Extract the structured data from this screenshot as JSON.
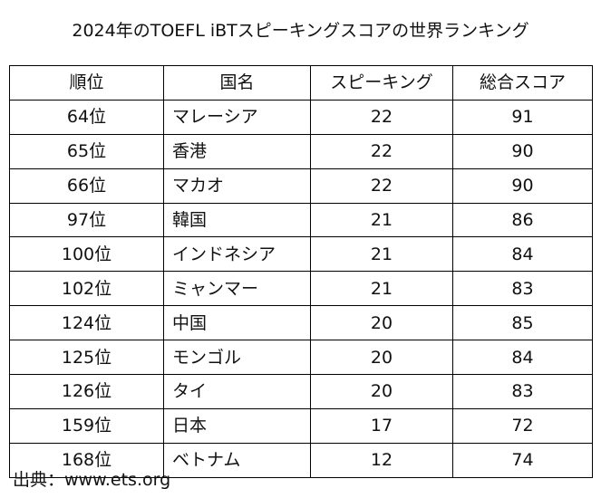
{
  "title": "2024年のTOEFL iBTスピーキングスコアの世界ランキング",
  "table": {
    "headers": {
      "rank": "順位",
      "country": "国名",
      "speaking": "スピーキング",
      "total": "総合スコア"
    },
    "rows": [
      {
        "rank": "64位",
        "country": "マレーシア",
        "speaking": "22",
        "total": "91"
      },
      {
        "rank": "65位",
        "country": "香港",
        "speaking": "22",
        "total": "90"
      },
      {
        "rank": "66位",
        "country": "マカオ",
        "speaking": "22",
        "total": "90"
      },
      {
        "rank": "97位",
        "country": "韓国",
        "speaking": "21",
        "total": "86"
      },
      {
        "rank": "100位",
        "country": "インドネシア",
        "speaking": "21",
        "total": "84"
      },
      {
        "rank": "102位",
        "country": "ミャンマー",
        "speaking": "21",
        "total": "83"
      },
      {
        "rank": "124位",
        "country": "中国",
        "speaking": "20",
        "total": "85"
      },
      {
        "rank": "125位",
        "country": "モンゴル",
        "speaking": "20",
        "total": "84"
      },
      {
        "rank": "126位",
        "country": "タイ",
        "speaking": "20",
        "total": "83"
      },
      {
        "rank": "159位",
        "country": "日本",
        "speaking": "17",
        "total": "72"
      },
      {
        "rank": "168位",
        "country": "ベトナム",
        "speaking": "12",
        "total": "74"
      }
    ]
  },
  "source": "出典：www.ets.org"
}
